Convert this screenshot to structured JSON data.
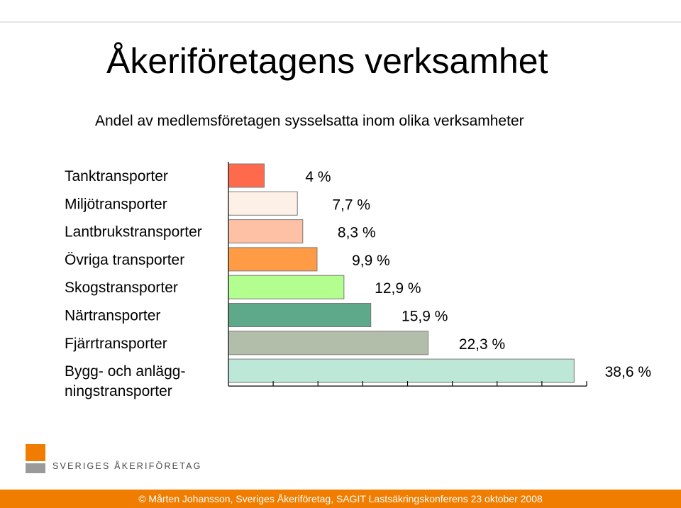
{
  "slide": {
    "title": "Åkeriföretagens verksamhet",
    "subtitle": "Andel av medlemsföretagen sysselsatta inom olika verksamheter"
  },
  "chart_data": {
    "type": "bar",
    "orientation": "horizontal",
    "title": "",
    "xlabel": "",
    "ylabel": "",
    "categories": [
      "Tanktransporter",
      "Miljötransporter",
      "Lantbrukstransporter",
      "Övriga transporter",
      "Skogstransporter",
      "Närtransporter",
      "Fjärrtransporter",
      "Bygg- och anlägg-\nningstransporter"
    ],
    "values": [
      4,
      7.7,
      8.3,
      9.9,
      12.9,
      15.9,
      22.3,
      38.6
    ],
    "value_labels": [
      "4 %",
      "7,7 %",
      "8,3 %",
      "9,9 %",
      "12,9 %",
      "15,9 %",
      "22,3 %",
      "38,6 %"
    ],
    "colors": [
      "#ff6a4d",
      "#fdf1e7",
      "#ffc1a6",
      "#ff9a45",
      "#b2ff8f",
      "#5ea98a",
      "#b2bdaa",
      "#bde8d8"
    ],
    "xlim": [
      0,
      40
    ],
    "grid": false,
    "legend": "none"
  },
  "logo": {
    "text": "SVERIGES ÅKERIFÖRETAG",
    "colors": [
      "#f07d00",
      "#9a9a9a"
    ]
  },
  "footer": {
    "text": "© Mårten Johansson, Sveriges Åkeriföretag, SAGIT Lastsäkringskonferens 23 oktober 2008",
    "background": "#f07d00"
  }
}
